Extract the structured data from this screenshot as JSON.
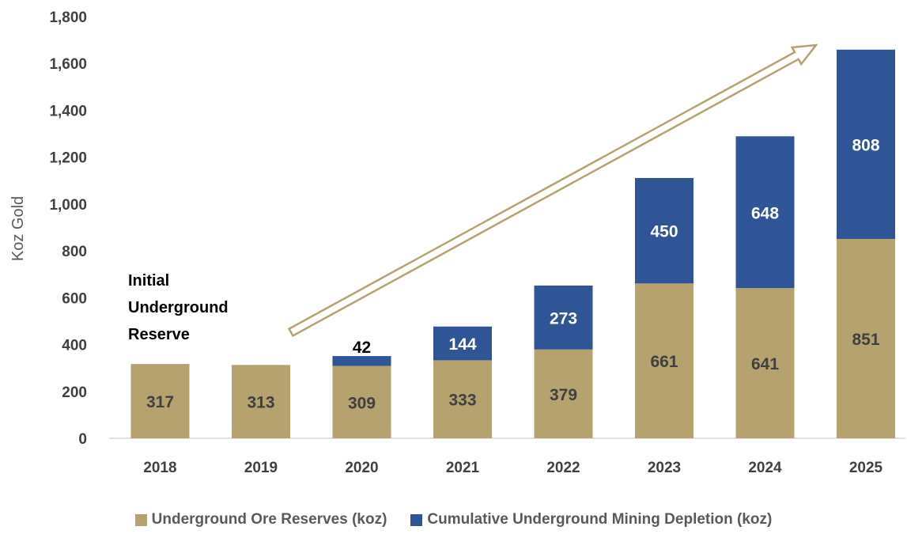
{
  "chart_data": {
    "type": "bar",
    "stacked": true,
    "categories": [
      "2018",
      "2019",
      "2020",
      "2021",
      "2022",
      "2023",
      "2024",
      "2025"
    ],
    "series": [
      {
        "name": "Underground Ore Reserves (koz)",
        "color": "#b5a26f",
        "label_color": "#404040",
        "values": [
          317,
          313,
          309,
          333,
          379,
          661,
          641,
          851
        ]
      },
      {
        "name": "Cumulative Underground Mining Depletion (koz)",
        "color": "#2f5597",
        "label_color": "#ffffff",
        "values": [
          null,
          null,
          42,
          144,
          273,
          450,
          648,
          808
        ]
      }
    ],
    "ylabel": "Koz Gold",
    "ylim": [
      0,
      1800
    ],
    "yticks": [
      "0",
      "200",
      "400",
      "600",
      "800",
      "1,000",
      "1,200",
      "1,400",
      "1,600",
      "1,800"
    ],
    "gridlines": false,
    "legend_position": "bottom",
    "annotation": {
      "lines": [
        "Initial",
        "Underground",
        "Reserve"
      ]
    },
    "trend_arrow_color": "#b5a26f"
  }
}
